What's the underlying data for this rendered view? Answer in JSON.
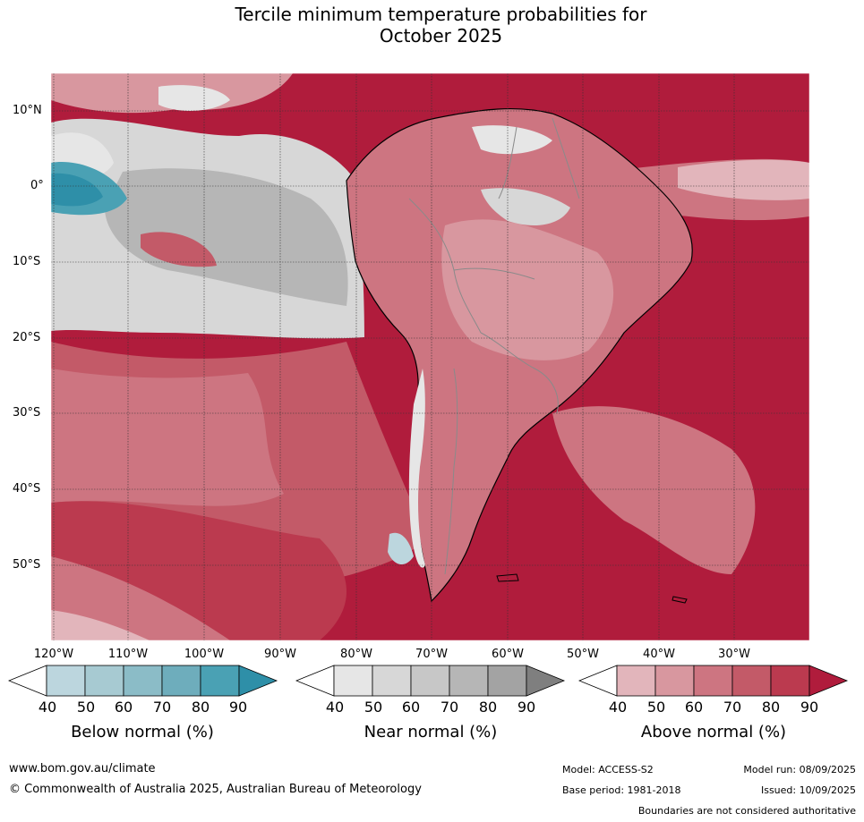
{
  "title": {
    "line1": "Tercile minimum temperature probabilities for",
    "line2": "October 2025"
  },
  "map": {
    "region": "South America",
    "lat_labels": [
      "10°N",
      "0°",
      "10°S",
      "20°S",
      "30°S",
      "40°S",
      "50°S"
    ],
    "lon_labels": [
      "120°W",
      "110°W",
      "100°W",
      "90°W",
      "80°W",
      "70°W",
      "60°W",
      "50°W",
      "40°W",
      "30°W"
    ],
    "gridlines": true
  },
  "colorbars": [
    {
      "name": "Below normal (%)",
      "ticks": [
        "40",
        "50",
        "60",
        "70",
        "80",
        "90"
      ],
      "colors": [
        "#ffffff",
        "#bcd6de",
        "#a7cad2",
        "#8bbcc7",
        "#6eadbc",
        "#4aa1b4",
        "#2e8fa8"
      ]
    },
    {
      "name": "Near normal (%)",
      "ticks": [
        "40",
        "50",
        "60",
        "70",
        "80",
        "90"
      ],
      "colors": [
        "#ffffff",
        "#e6e6e6",
        "#d7d7d7",
        "#c7c7c7",
        "#b6b6b6",
        "#a3a3a3",
        "#7f7f7f"
      ]
    },
    {
      "name": "Above normal (%)",
      "ticks": [
        "40",
        "50",
        "60",
        "70",
        "80",
        "90"
      ],
      "colors": [
        "#ffffff",
        "#e2b5bb",
        "#d8979f",
        "#cd7581",
        "#c35a68",
        "#bb3a4f",
        "#b01c3c"
      ]
    }
  ],
  "footer": {
    "url": "www.bom.gov.au/climate",
    "copyright": "© Commonwealth of Australia 2025, Australian Bureau of Meteorology",
    "model": "Model: ACCESS-S2",
    "model_run": "Model run: 08/09/2025",
    "base_period": "Base period: 1981-2018",
    "issued": "Issued: 10/09/2025",
    "disclaimer": "Boundaries are not considered authoritative"
  }
}
